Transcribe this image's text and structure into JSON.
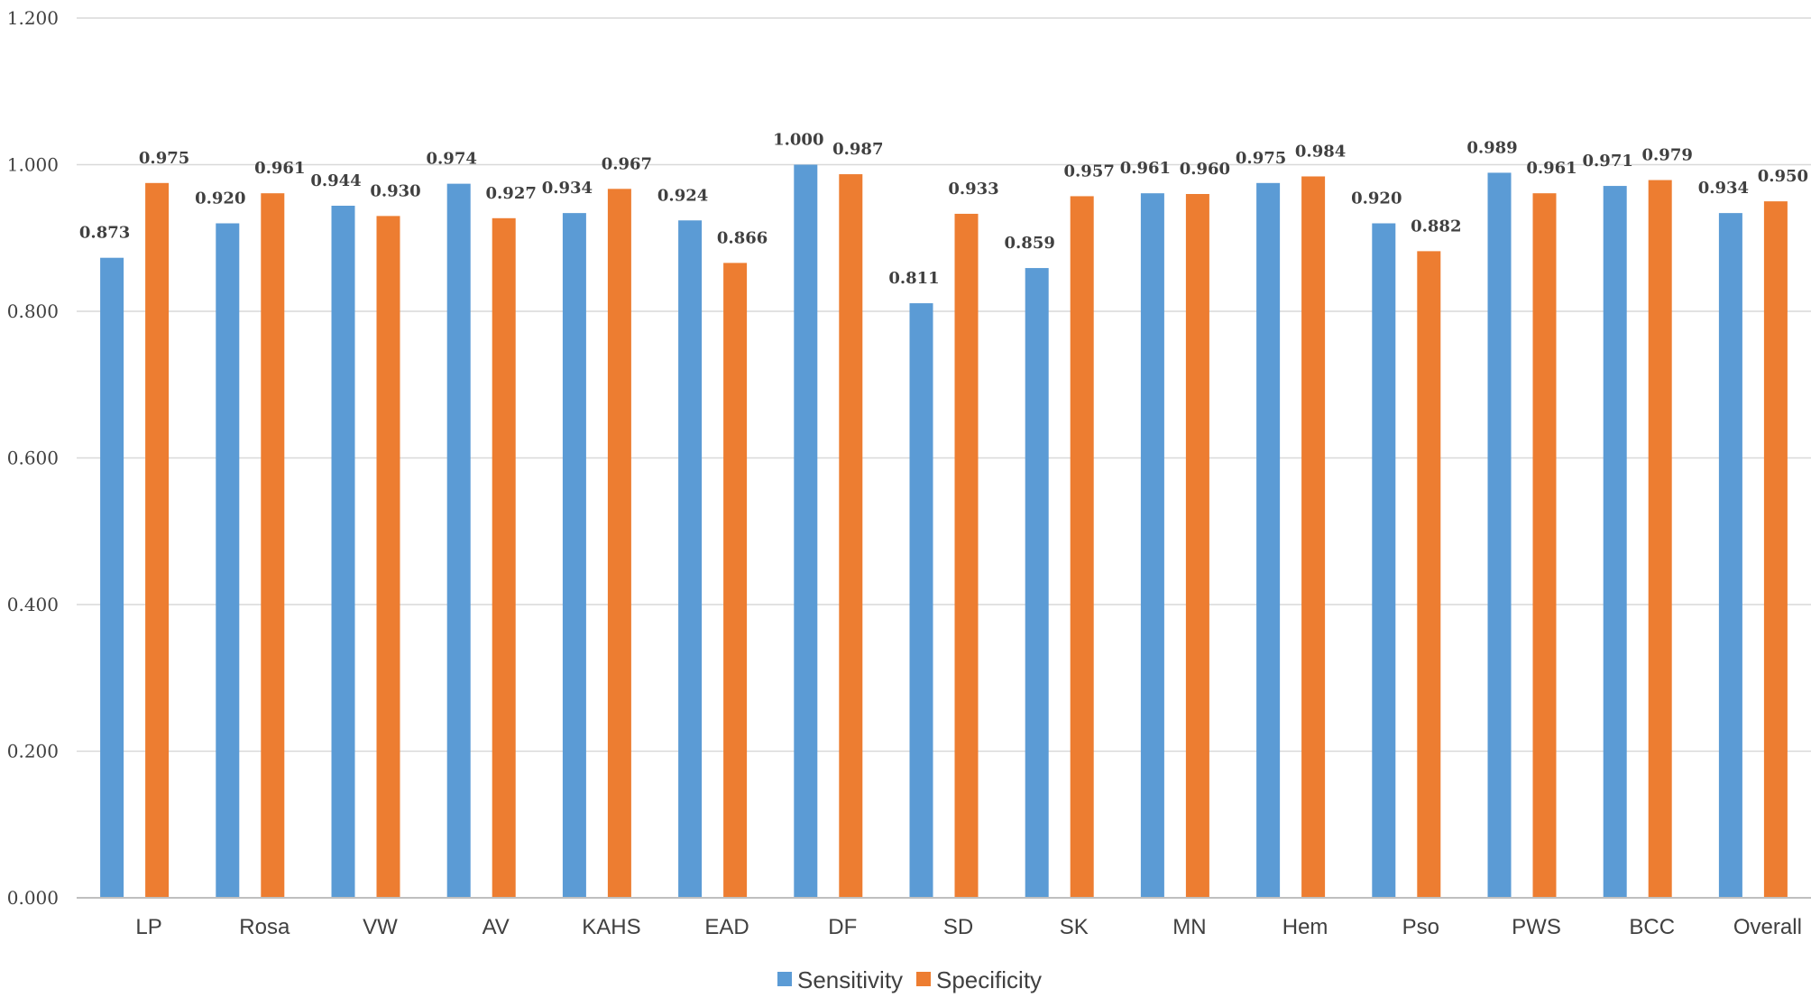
{
  "chart_data": {
    "type": "bar",
    "categories": [
      "LP",
      "Rosa",
      "VW",
      "AV",
      "KAHS",
      "EAD",
      "DF",
      "SD",
      "SK",
      "MN",
      "Hem",
      "Pso",
      "PWS",
      "BCC",
      "Overall"
    ],
    "series": [
      {
        "name": "Sensitivity",
        "color": "#5b9bd5",
        "values": [
          0.873,
          0.92,
          0.944,
          0.974,
          0.934,
          0.924,
          1.0,
          0.811,
          0.859,
          0.961,
          0.975,
          0.92,
          0.989,
          0.971,
          0.934
        ],
        "labels": [
          "0.873",
          "0.920",
          "0.944",
          "0.974",
          "0.934",
          "0.924",
          "1.000",
          "0.811",
          "0.859",
          "0.961",
          "0.975",
          "0.920",
          "0.989",
          "0.971",
          "0.934"
        ]
      },
      {
        "name": "Specificity",
        "color": "#ed7d31",
        "values": [
          0.975,
          0.961,
          0.93,
          0.927,
          0.967,
          0.866,
          0.987,
          0.933,
          0.957,
          0.96,
          0.984,
          0.882,
          0.961,
          0.979,
          0.95
        ],
        "labels": [
          "0.975",
          "0.961",
          "0.930",
          "0.927",
          "0.967",
          "0.866",
          "0.987",
          "0.933",
          "0.957",
          "0.960",
          "0.984",
          "0.882",
          "0.961",
          "0.979",
          "0.950"
        ]
      }
    ],
    "yticks": [
      0,
      0.2,
      0.4,
      0.6,
      0.8,
      1.0,
      1.2
    ],
    "ytick_labels": [
      "0.000",
      "0.200",
      "0.400",
      "0.600",
      "0.800",
      "1.000",
      "1.200"
    ],
    "ylim": [
      0,
      1.2
    ],
    "grid": true,
    "legend_position": "bottom-center",
    "title": "",
    "xlabel": "",
    "ylabel": ""
  }
}
